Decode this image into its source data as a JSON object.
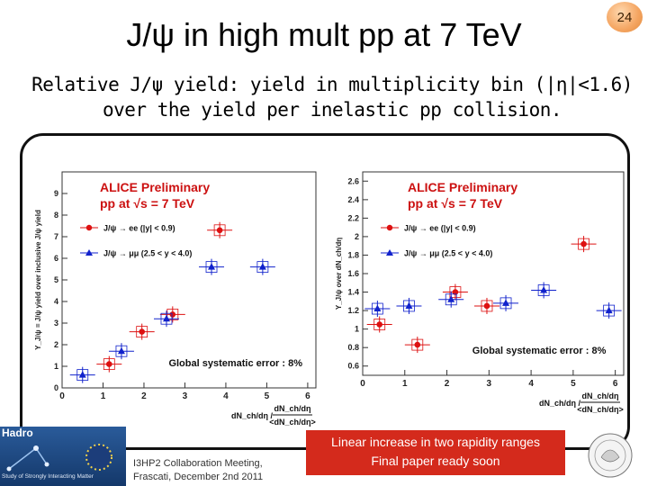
{
  "slide": {
    "title": "J/ψ in high mult pp at 7 TeV",
    "number": "24",
    "subtitle_line1": "Relative J/ψ yield: yield in multiplicity bin (|η|<1.6)",
    "subtitle_line2": "over the yield per inelastic pp collision."
  },
  "chart_data": [
    {
      "type": "scatter",
      "header_line1": "ALICE Preliminary",
      "header_line2": "pp at √s = 7 TeV",
      "ylabel": "Y_J/ψ = J/ψ yield over inclusive J/ψ yield",
      "xlabel_numerator": "dN_ch/dη",
      "xlabel_denominator": "<dN_ch/dη>",
      "xlabel_prefix": "dN_ch/dη /",
      "xlim": [
        0,
        6.2
      ],
      "ylim": [
        0,
        10
      ],
      "xticks": [
        "0",
        "1",
        "2",
        "3",
        "4",
        "5",
        "6"
      ],
      "yticks": [
        "0",
        "1",
        "2",
        "3",
        "4",
        "5",
        "6",
        "7",
        "8",
        "9"
      ],
      "systematic": "Global systematic error : 8%",
      "series": [
        {
          "name": "J/ψ → ee (|y| < 0.9)",
          "color": "#dd1111",
          "marker": "circle",
          "points": [
            {
              "x": 1.15,
              "y": 1.1
            },
            {
              "x": 1.95,
              "y": 2.6
            },
            {
              "x": 2.7,
              "y": 3.4
            },
            {
              "x": 3.85,
              "y": 7.3
            }
          ]
        },
        {
          "name": "J/ψ → μμ (2.5 < y < 4.0)",
          "color": "#1122cc",
          "marker": "triangle",
          "points": [
            {
              "x": 0.5,
              "y": 0.6
            },
            {
              "x": 1.45,
              "y": 1.7
            },
            {
              "x": 2.55,
              "y": 3.2
            },
            {
              "x": 3.65,
              "y": 5.6
            },
            {
              "x": 4.9,
              "y": 5.6
            }
          ]
        }
      ]
    },
    {
      "type": "scatter",
      "header_line1": "ALICE Preliminary",
      "header_line2": "pp at √s = 7 TeV",
      "ylabel": "Y_J/ψ over dN_ch/dη",
      "xlabel_numerator": "dN_ch/dη",
      "xlabel_denominator": "<dN_ch/dη>",
      "xlabel_prefix": "dN_ch/dη /",
      "xlim": [
        0,
        6.2
      ],
      "ylim": [
        0.5,
        2.7
      ],
      "xticks": [
        "0",
        "1",
        "2",
        "3",
        "4",
        "5",
        "6"
      ],
      "yticks": [
        "0.6",
        "0.8",
        "1",
        "1.2",
        "1.4",
        "1.6",
        "1.8",
        "2",
        "2.2",
        "2.4",
        "2.6"
      ],
      "systematic": "Global systematic error : 8%",
      "series": [
        {
          "name": "J/ψ → ee (|y| < 0.9)",
          "color": "#dd1111",
          "marker": "circle",
          "points": [
            {
              "x": 0.4,
              "y": 1.05
            },
            {
              "x": 1.3,
              "y": 0.83
            },
            {
              "x": 2.2,
              "y": 1.4
            },
            {
              "x": 2.95,
              "y": 1.25
            },
            {
              "x": 5.25,
              "y": 1.92
            }
          ]
        },
        {
          "name": "J/ψ → μμ (2.5 < y < 4.0)",
          "color": "#1122cc",
          "marker": "triangle",
          "points": [
            {
              "x": 0.35,
              "y": 1.22
            },
            {
              "x": 1.1,
              "y": 1.25
            },
            {
              "x": 2.1,
              "y": 1.32
            },
            {
              "x": 3.4,
              "y": 1.28
            },
            {
              "x": 4.3,
              "y": 1.42
            },
            {
              "x": 5.85,
              "y": 1.2
            }
          ]
        }
      ]
    }
  ],
  "footer": {
    "logo_text": "Hadro",
    "logo_subtext": "Study of Strongly Interacting Matter",
    "meeting_line1": "I3HP2 Collaboration Meeting,",
    "meeting_line2": "Frascati, December 2nd 2011",
    "highlight_line1": "Linear increase in two rapidity ranges",
    "highlight_line2": "Final paper ready soon"
  }
}
